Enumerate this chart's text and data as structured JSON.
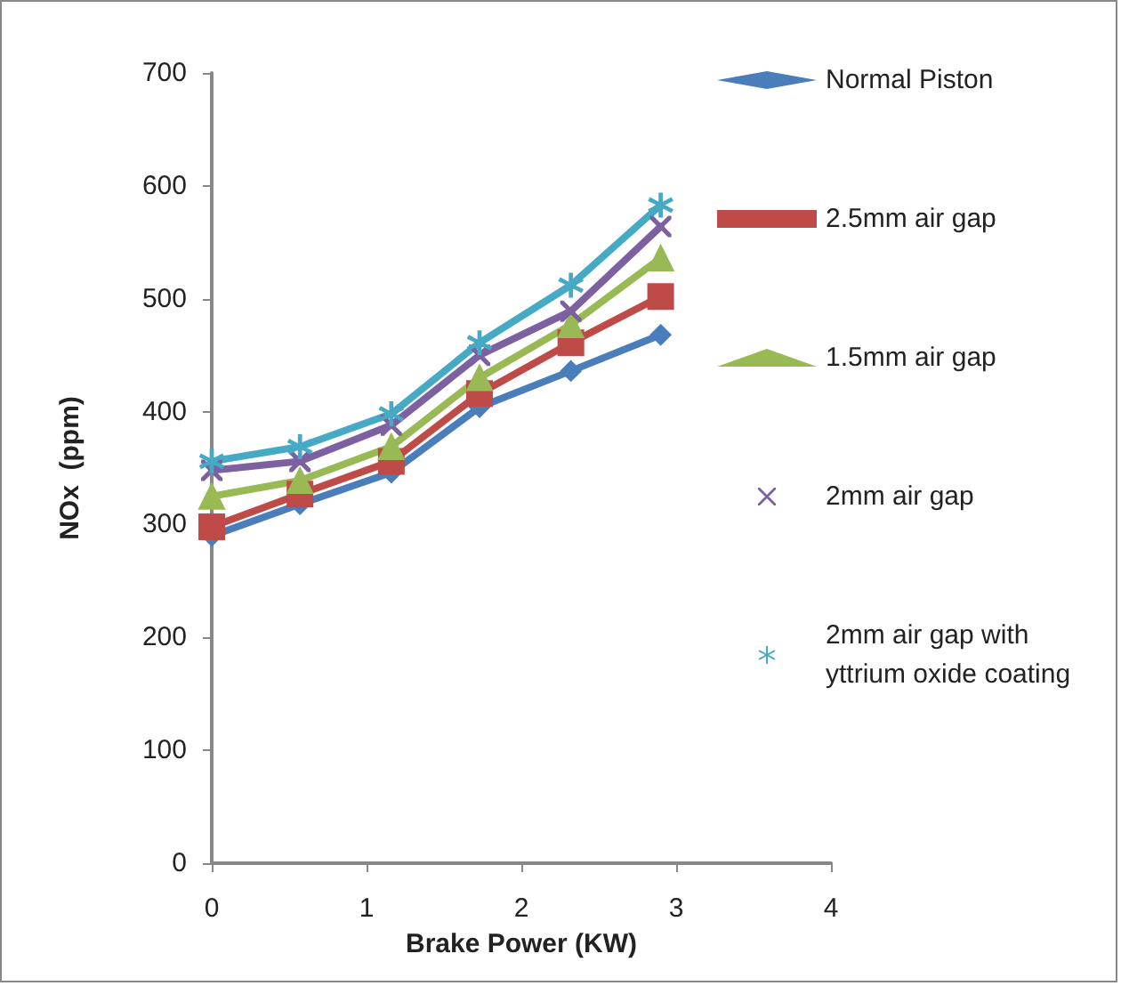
{
  "chart_data": {
    "type": "line",
    "xlabel": "Brake Power (KW)",
    "ylabel": "NOx  (ppm)",
    "x": [
      0,
      0.57,
      1.16,
      1.73,
      2.32,
      2.9
    ],
    "xlim": [
      0,
      4
    ],
    "xticks": [
      0,
      1,
      2,
      3,
      4
    ],
    "ylim": [
      0,
      700
    ],
    "yticks": [
      0,
      100,
      200,
      300,
      400,
      500,
      600,
      700
    ],
    "grid": false,
    "legend": "right",
    "series": [
      {
        "name": "Normal Piston",
        "color": "#4a7ebb",
        "marker": "diamond",
        "values": [
          290,
          318,
          346,
          404,
          436,
          468
        ]
      },
      {
        "name": "2.5mm air gap",
        "color": "#be4b48",
        "marker": "square",
        "values": [
          298,
          327,
          356,
          416,
          461,
          502
        ]
      },
      {
        "name": "1.5mm air gap",
        "color": "#98b954",
        "marker": "triangle",
        "values": [
          325,
          339,
          369,
          430,
          477,
          536
        ]
      },
      {
        "name": "2mm air gap",
        "color": "#7d60a0",
        "marker": "cross",
        "values": [
          348,
          356,
          388,
          450,
          489,
          564
        ]
      },
      {
        "name": "2mm air gap with yttrium oxide coating",
        "color": "#46aac5",
        "marker": "star",
        "values": [
          356,
          369,
          398,
          461,
          512,
          583
        ]
      }
    ]
  }
}
